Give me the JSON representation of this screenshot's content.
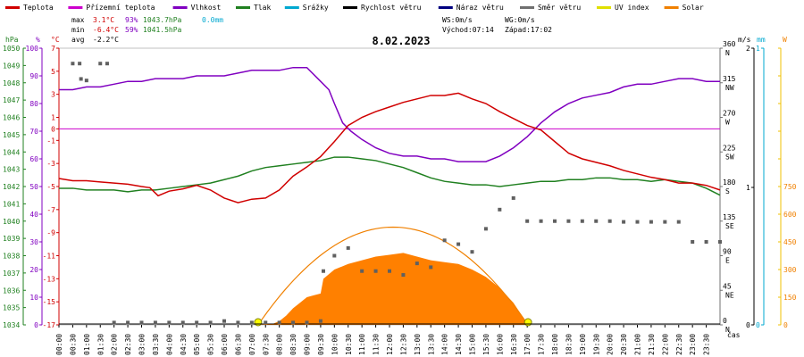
{
  "date": "8.02.2023",
  "legend": [
    {
      "label": "Teplota",
      "color": "#d00000"
    },
    {
      "label": "Přízemní teplota",
      "color": "#cc00cc"
    },
    {
      "label": "Vlhkost",
      "color": "#8000c0"
    },
    {
      "label": "Tlak",
      "color": "#208020"
    },
    {
      "label": "Srážky",
      "color": "#00a8d0"
    },
    {
      "label": "Rychlost větru",
      "color": "#000000"
    },
    {
      "label": "Náraz větru",
      "color": "#000080"
    },
    {
      "label": "Směr větru",
      "color": "#707070"
    },
    {
      "label": "UV index",
      "color": "#e0e000"
    },
    {
      "label": "Solar",
      "color": "#f08000"
    }
  ],
  "stats": {
    "max_label": "max",
    "min_label": "min",
    "avg_label": "avg",
    "max_temp": "3.1°C",
    "min_temp": "-6.4°C",
    "avg_temp": "-2.2°C",
    "max_hum": "93%",
    "min_hum": "59%",
    "max_press": "1043.7hPa",
    "min_press": "1041.5hPa",
    "rain": "0.0mm"
  },
  "wind_info": {
    "ws": "WS:0m/s",
    "wg": "WG:0m/s",
    "sunrise": "Východ:07:14",
    "sunset": "Západ:17:02"
  },
  "axes": {
    "left_units": [
      "hPa",
      "%",
      "°C"
    ],
    "right_units": [
      "m/s",
      "mm",
      "W"
    ],
    "time_label": "čas",
    "pressure_ticks": [
      "1034",
      "1035",
      "1036",
      "1037",
      "1038",
      "1039",
      "1040",
      "1041",
      "1042",
      "1043",
      "1044",
      "1045",
      "1046",
      "1047",
      "1048",
      "1049",
      "1050"
    ],
    "humidity_ticks": [
      "0",
      "10",
      "20",
      "30",
      "40",
      "50",
      "60",
      "70",
      "80",
      "90",
      "100"
    ],
    "temp_ticks": [
      "-17",
      "-15",
      "-13",
      "-11",
      "-9",
      "-7",
      "-5",
      "-3",
      "-1",
      "0",
      "1",
      "3",
      "5",
      "7"
    ],
    "dir_ticks": [
      {
        "deg": "0",
        "dir": "N"
      },
      {
        "deg": "45",
        "dir": "NE"
      },
      {
        "deg": "90",
        "dir": "E"
      },
      {
        "deg": "135",
        "dir": "SE"
      },
      {
        "deg": "180",
        "dir": "S"
      },
      {
        "deg": "225",
        "dir": "SW"
      },
      {
        "deg": "270",
        "dir": "W"
      },
      {
        "deg": "315",
        "dir": "NW"
      },
      {
        "deg": "360",
        "dir": "N"
      }
    ],
    "speed_ticks": [
      "0",
      "1",
      "2"
    ],
    "rain_ticks": [
      "0",
      "1"
    ],
    "solar_ticks": [
      "0",
      "150",
      "300",
      "450",
      "600",
      "750",
      "900",
      "1050",
      "1200",
      "1350",
      "1500"
    ],
    "time_ticks": [
      "00:00",
      "00:30",
      "01:00",
      "01:30",
      "02:00",
      "02:30",
      "03:00",
      "03:30",
      "04:00",
      "04:30",
      "05:00",
      "05:30",
      "06:00",
      "06:30",
      "07:00",
      "07:30",
      "08:00",
      "08:30",
      "09:00",
      "09:30",
      "10:00",
      "10:30",
      "11:00",
      "11:30",
      "12:00",
      "12:30",
      "13:00",
      "13:30",
      "14:00",
      "14:30",
      "15:00",
      "15:30",
      "16:00",
      "16:30",
      "17:00",
      "17:30",
      "18:00",
      "18:30",
      "19:00",
      "19:30",
      "20:00",
      "20:30",
      "21:00",
      "21:30",
      "22:00",
      "22:30",
      "23:00",
      "23:30"
    ]
  },
  "chart_data": {
    "type": "line",
    "x_unit": "hour of day",
    "temperature": {
      "x": [
        0,
        0.5,
        1,
        1.5,
        2,
        2.5,
        3,
        3.3,
        3.6,
        4,
        4.5,
        5,
        5.5,
        6,
        6.5,
        7,
        7.5,
        8,
        8.5,
        9,
        9.5,
        10,
        10.5,
        11,
        11.5,
        12,
        12.5,
        13,
        13.5,
        14,
        14.5,
        15,
        15.5,
        16,
        16.5,
        17,
        17.5,
        18,
        18.5,
        19,
        19.5,
        20,
        20.5,
        21,
        21.5,
        22,
        22.5,
        23,
        23.5,
        24
      ],
      "y": [
        -4.3,
        -4.5,
        -4.5,
        -4.6,
        -4.7,
        -4.8,
        -5.0,
        -5.1,
        -5.8,
        -5.4,
        -5.2,
        -4.9,
        -5.3,
        -6.0,
        -6.4,
        -6.1,
        -6.0,
        -5.3,
        -4.1,
        -3.3,
        -2.4,
        -1.1,
        0.3,
        1.0,
        1.5,
        1.9,
        2.3,
        2.6,
        2.9,
        2.9,
        3.1,
        2.6,
        2.2,
        1.5,
        0.9,
        0.3,
        -0.1,
        -1.1,
        -2.1,
        -2.6,
        -2.9,
        -3.2,
        -3.6,
        -3.9,
        -4.2,
        -4.4,
        -4.7,
        -4.7,
        -4.9,
        -5.3
      ]
    },
    "ground_temperature": {
      "value": 0
    },
    "humidity": {
      "x": [
        0,
        0.5,
        1,
        1.5,
        2,
        2.5,
        3,
        3.5,
        4,
        4.5,
        5,
        5.5,
        6,
        6.5,
        7,
        7.5,
        8,
        8.5,
        9,
        9.5,
        9.8,
        10,
        10.3,
        10.6,
        11,
        11.5,
        12,
        12.5,
        13,
        13.5,
        14,
        14.5,
        15,
        15.5,
        16,
        16.5,
        17,
        17.5,
        18,
        18.5,
        19,
        19.5,
        20,
        20.5,
        21,
        21.5,
        22,
        22.5,
        23,
        23.5,
        24
      ],
      "y": [
        85,
        85,
        86,
        86,
        87,
        88,
        88,
        89,
        89,
        89,
        90,
        90,
        90,
        91,
        92,
        92,
        92,
        93,
        93,
        88,
        85,
        80,
        73,
        70,
        67,
        64,
        62,
        61,
        61,
        60,
        60,
        59,
        59,
        59,
        61,
        64,
        68,
        73,
        77,
        80,
        82,
        83,
        84,
        86,
        87,
        87,
        88,
        89,
        89,
        88,
        88
      ]
    },
    "pressure": {
      "x": [
        0,
        0.5,
        1,
        1.5,
        2,
        2.5,
        3,
        3.5,
        4,
        4.5,
        5,
        5.5,
        6,
        6.5,
        7,
        7.5,
        8,
        8.5,
        9,
        9.5,
        10,
        10.5,
        11,
        11.5,
        12,
        12.5,
        13,
        13.5,
        14,
        14.5,
        15,
        15.5,
        16,
        16.5,
        17,
        17.5,
        18,
        18.5,
        19,
        19.5,
        20,
        20.5,
        21,
        21.5,
        22,
        22.5,
        23,
        23.5,
        24
      ],
      "y": [
        1041.9,
        1041.9,
        1041.8,
        1041.8,
        1041.8,
        1041.7,
        1041.8,
        1041.8,
        1041.9,
        1042.0,
        1042.1,
        1042.2,
        1042.4,
        1042.6,
        1042.9,
        1043.1,
        1043.2,
        1043.3,
        1043.4,
        1043.5,
        1043.7,
        1043.7,
        1043.6,
        1043.5,
        1043.3,
        1043.1,
        1042.8,
        1042.5,
        1042.3,
        1042.2,
        1042.1,
        1042.1,
        1042.0,
        1042.1,
        1042.2,
        1042.3,
        1042.3,
        1042.4,
        1042.4,
        1042.5,
        1042.5,
        1042.4,
        1042.4,
        1042.3,
        1042.4,
        1042.3,
        1042.2,
        1041.9,
        1041.5
      ]
    },
    "wind_direction": {
      "x": [
        0.5,
        0.75,
        0.8,
        1,
        1.5,
        1.75,
        2,
        2.5,
        3,
        3.5,
        4,
        4.5,
        5,
        5.5,
        6,
        6.5,
        7,
        7.5,
        8,
        8.5,
        9,
        9.5,
        9.6,
        10,
        10.5,
        11,
        11.5,
        12,
        12.5,
        13,
        13.5,
        14,
        14.5,
        15,
        15.5,
        16,
        16.5,
        17,
        17.5,
        18,
        18.5,
        19,
        19.5,
        20,
        20.5,
        21,
        21.5,
        22,
        22.5,
        23,
        23.5,
        24
      ],
      "y": [
        340,
        340,
        320,
        318,
        340,
        340,
        3,
        3,
        3,
        3,
        3,
        3,
        3,
        3,
        5,
        3,
        3,
        3,
        3,
        3,
        3,
        5,
        70,
        90,
        100,
        70,
        70,
        70,
        65,
        80,
        75,
        110,
        105,
        95,
        125,
        150,
        165,
        135,
        135,
        135,
        135,
        135,
        135,
        135,
        134,
        134,
        134,
        134,
        134,
        108,
        108,
        108
      ]
    },
    "wind_speed": {
      "value": 0
    },
    "rain": {
      "value": 0
    },
    "solar": {
      "x": [
        7.23,
        7.75,
        8,
        8.25,
        8.5,
        8.75,
        9,
        9.25,
        9.5,
        9.6,
        10,
        10.5,
        11,
        11.5,
        12,
        12.5,
        13,
        13.5,
        14,
        14.5,
        15,
        15.5,
        16,
        16.5,
        17.03
      ],
      "y": [
        0,
        5,
        20,
        50,
        90,
        120,
        150,
        160,
        170,
        250,
        300,
        330,
        350,
        370,
        380,
        390,
        370,
        350,
        340,
        330,
        300,
        260,
        200,
        120,
        0
      ]
    },
    "solar_theoretical_max": 530,
    "ylim": {
      "temperature": [
        -17,
        7
      ],
      "humidity": [
        0,
        100
      ],
      "pressure": [
        1034,
        1050
      ],
      "direction": [
        0,
        360
      ],
      "solar": [
        0,
        1500
      ]
    }
  }
}
